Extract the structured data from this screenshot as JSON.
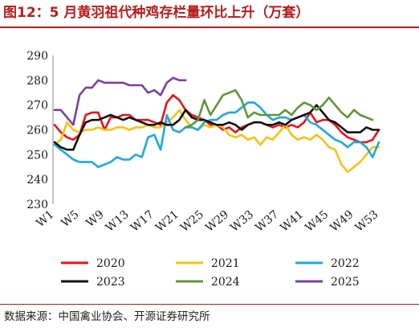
{
  "figure": {
    "title": "图12：5 月黄羽祖代种鸡存栏量环比上升（万套）",
    "source": "数据来源：中国禽业协会、开源证券研究所"
  },
  "colors": {
    "title": "#b71c1c",
    "2020": "#e8131a",
    "2021": "#f7c20f",
    "2022": "#1da8e3",
    "2023": "#111111",
    "2024": "#5f9637",
    "2025": "#7a3fa6"
  },
  "chart_data": {
    "type": "line",
    "title": "",
    "xlabel": "",
    "ylabel": "",
    "ylim": [
      230,
      290
    ],
    "yticks": [
      230,
      240,
      250,
      260,
      270,
      280,
      290
    ],
    "xlim": [
      1,
      53
    ],
    "xticks": [
      "W1",
      "W5",
      "W9",
      "W13",
      "W17",
      "W21",
      "W25",
      "W29",
      "W33",
      "W37",
      "W41",
      "W45",
      "W49",
      "W53"
    ],
    "grid": false,
    "legend_position": "bottom",
    "series": [
      {
        "name": "2020",
        "x": [
          1,
          2,
          3,
          4,
          5,
          6,
          7,
          8,
          9,
          10,
          11,
          12,
          13,
          14,
          15,
          16,
          17,
          18,
          19,
          20,
          21,
          22,
          23,
          24,
          25,
          26,
          27,
          28,
          29,
          30,
          31,
          32,
          33,
          34,
          35,
          36,
          37,
          38,
          39,
          40,
          41,
          42,
          43,
          44,
          45,
          46,
          47,
          48,
          49,
          50,
          51,
          52,
          53
        ],
        "values": [
          262,
          259,
          257,
          256,
          258,
          266,
          267,
          267,
          260,
          265,
          265,
          266,
          266,
          264,
          264,
          264,
          263,
          262,
          271,
          274,
          272,
          268,
          266,
          265,
          264,
          262,
          262,
          260,
          261,
          259,
          261,
          262,
          263,
          263,
          262,
          261,
          262,
          261,
          262,
          261,
          263,
          267,
          263,
          264,
          264,
          262,
          259,
          257,
          256,
          255,
          255,
          256,
          260
        ]
      },
      {
        "name": "2021",
        "x": [
          1,
          2,
          3,
          4,
          5,
          6,
          7,
          8,
          9,
          10,
          11,
          12,
          13,
          14,
          15,
          16,
          17,
          18,
          19,
          20,
          21,
          22,
          23,
          24,
          25,
          26,
          27,
          28,
          29,
          30,
          31,
          32,
          33,
          34,
          35,
          36,
          37,
          38,
          39,
          40,
          41,
          42,
          43,
          44,
          45,
          46,
          47,
          48,
          49,
          50,
          51,
          52,
          53
        ],
        "values": [
          254,
          256,
          263,
          260,
          259,
          260,
          260,
          261,
          260,
          260,
          261,
          261,
          260,
          261,
          261,
          262,
          261,
          261,
          263,
          265,
          268,
          264,
          261,
          260,
          262,
          261,
          262,
          261,
          258,
          257,
          258,
          256,
          257,
          254,
          257,
          256,
          259,
          262,
          258,
          256,
          257,
          256,
          258,
          256,
          253,
          252,
          246,
          243,
          245,
          247,
          250,
          253,
          253
        ]
      },
      {
        "name": "2022",
        "x": [
          1,
          2,
          3,
          4,
          5,
          6,
          7,
          8,
          9,
          10,
          11,
          12,
          13,
          14,
          15,
          16,
          17,
          18,
          19,
          20,
          21,
          22,
          23,
          24,
          25,
          26,
          27,
          28,
          29,
          30,
          31,
          32,
          33,
          34,
          35,
          36,
          37,
          38,
          39,
          40,
          41,
          42,
          43,
          44,
          45,
          46,
          47,
          48,
          49,
          50,
          51,
          52,
          53
        ],
        "values": [
          254,
          252,
          250,
          248,
          247,
          247,
          247,
          245,
          246,
          247,
          249,
          248,
          248,
          250,
          249,
          257,
          258,
          252,
          266,
          260,
          259,
          261,
          261,
          260,
          263,
          264,
          264,
          266,
          267,
          267,
          269,
          271,
          271,
          269,
          266,
          264,
          265,
          265,
          264,
          265,
          266,
          263,
          262,
          260,
          258,
          256,
          255,
          253,
          255,
          255,
          253,
          249,
          255
        ]
      },
      {
        "name": "2023",
        "x": [
          1,
          2,
          3,
          4,
          5,
          6,
          7,
          8,
          9,
          10,
          11,
          12,
          13,
          14,
          15,
          16,
          17,
          18,
          19,
          20,
          21,
          22,
          23,
          24,
          25,
          26,
          27,
          28,
          29,
          30,
          31,
          32,
          33,
          34,
          35,
          36,
          37,
          38,
          39,
          40,
          41,
          42,
          43,
          44,
          45,
          46,
          47,
          48,
          49,
          50,
          51,
          52,
          53
        ],
        "values": [
          255,
          253,
          252,
          252,
          258,
          263,
          264,
          264,
          265,
          266,
          265,
          264,
          265,
          264,
          263,
          262,
          262,
          263,
          262,
          262,
          264,
          268,
          265,
          264,
          264,
          263,
          262,
          262,
          263,
          262,
          260,
          262,
          263,
          263,
          262,
          262,
          263,
          262,
          264,
          265,
          266,
          267,
          270,
          267,
          264,
          263,
          261,
          259,
          259,
          259,
          261,
          260,
          260
        ]
      },
      {
        "name": "2024",
        "x": [
          22,
          23,
          24,
          25,
          26,
          27,
          28,
          29,
          30,
          31,
          32,
          33,
          34,
          35,
          36,
          37,
          38,
          39,
          40,
          41,
          42,
          43,
          44,
          45,
          46,
          47,
          48,
          49,
          50,
          51,
          52
        ],
        "values": [
          261,
          262,
          264,
          272,
          266,
          270,
          274,
          275,
          276,
          272,
          265,
          267,
          266,
          266,
          266,
          266,
          268,
          266,
          269,
          271,
          270,
          268,
          270,
          273,
          270,
          267,
          265,
          268,
          266,
          265,
          264
        ]
      },
      {
        "name": "2025",
        "x": [
          1,
          2,
          3,
          4,
          5,
          6,
          7,
          8,
          9,
          10,
          11,
          12,
          13,
          14,
          15,
          16,
          17,
          18,
          19,
          20,
          21,
          22
        ],
        "values": [
          268,
          268,
          265,
          262,
          274,
          277,
          277,
          280,
          279,
          279,
          279,
          279,
          278,
          278,
          278,
          275,
          276,
          274,
          279,
          281,
          280,
          280
        ]
      }
    ]
  }
}
